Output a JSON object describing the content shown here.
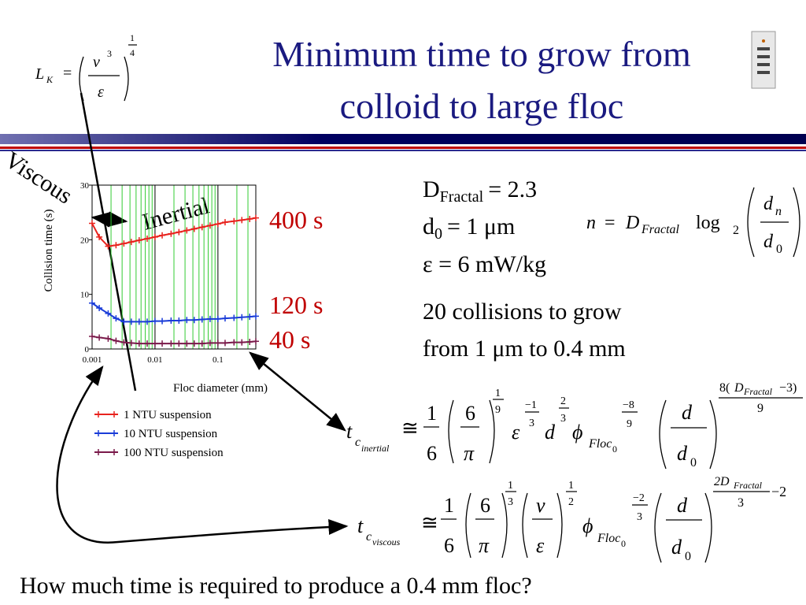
{
  "title": [
    "Minimum time to grow from",
    "colloid to large floc"
  ],
  "annotations": {
    "viscous": "Viscous",
    "inertial": "Inertial",
    "t400": "400 s",
    "t120": "120 s",
    "t40": "40 s"
  },
  "params": [
    [
      "D",
      "Fractal",
      "= 2.3"
    ],
    [
      "d",
      "0",
      "= 1 μm"
    ],
    [
      "ε = 6 mW/kg"
    ]
  ],
  "notes": [
    "20 collisions to grow",
    "from 1 μm to 0.4 mm"
  ],
  "question": "How much time is required to produce a 0.4 mm floc?",
  "equations": {
    "kolmogorov": [
      "L",
      "K",
      "=",
      "ν",
      "3",
      "ε",
      "1",
      "4"
    ],
    "n": [
      "n",
      "=",
      "D",
      "Fractal",
      "log",
      "2",
      "d",
      "n",
      "d",
      "0"
    ],
    "inertial": [
      "t",
      "c",
      "inertial",
      "≅",
      "1",
      "6",
      "6",
      "π",
      "1",
      "9",
      "ε",
      "−1",
      "3",
      "d",
      "2",
      "3",
      "ϕ",
      "Floc",
      "0",
      "−8",
      "9",
      "d",
      "d",
      "0",
      "8(",
      "D",
      "Fractal",
      "−3)",
      "9"
    ],
    "viscous": [
      "t",
      "c",
      "viscous",
      "≅",
      "1",
      "6",
      "6",
      "π",
      "1",
      "3",
      "ν",
      "ε",
      "1",
      "2",
      "ϕ",
      "Floc",
      "0",
      "−2",
      "3",
      "d",
      "d",
      "0",
      "2D",
      "Fractal",
      "3",
      "−2"
    ]
  },
  "chart_data": {
    "type": "line",
    "x_label": "Floc diameter (mm)",
    "y_label": "Collision time (s)",
    "xscale": "log",
    "xlim": [
      0.001,
      0.4
    ],
    "ylim": [
      0,
      30
    ],
    "xticks": [
      0.001,
      0.01,
      0.1
    ],
    "yticks": [
      0,
      10,
      20,
      30
    ],
    "x_minor_ticks": [
      0.002,
      0.003,
      0.004,
      0.005,
      0.006,
      0.007,
      0.008,
      0.009,
      0.02,
      0.03,
      0.04,
      0.05,
      0.06,
      0.07,
      0.08,
      0.09,
      0.2,
      0.3
    ],
    "grid": true,
    "x": [
      0.001,
      0.0013,
      0.0018,
      0.0024,
      0.0032,
      0.0042,
      0.0056,
      0.0075,
      0.01,
      0.013,
      0.018,
      0.024,
      0.032,
      0.042,
      0.056,
      0.075,
      0.1,
      0.13,
      0.18,
      0.24,
      0.32,
      0.4
    ],
    "series": [
      {
        "name": "1 NTU suspension",
        "color": "#e8231e",
        "values": [
          23,
          20.5,
          18.8,
          19,
          19.3,
          19.6,
          19.9,
          20.2,
          20.5,
          20.8,
          21.1,
          21.4,
          21.7,
          22,
          22.3,
          22.6,
          22.9,
          23.2,
          23.4,
          23.6,
          23.8,
          24
        ]
      },
      {
        "name": "10 NTU suspension",
        "color": "#1a3cd8",
        "values": [
          8.4,
          7.5,
          6.5,
          5.6,
          5.0,
          5.0,
          5.0,
          5.0,
          5.1,
          5.1,
          5.2,
          5.2,
          5.3,
          5.3,
          5.4,
          5.5,
          5.5,
          5.6,
          5.7,
          5.8,
          5.9,
          6.0
        ]
      },
      {
        "name": "100 NTU suspension",
        "color": "#7a1a4a",
        "values": [
          2.3,
          2.1,
          1.9,
          1.5,
          1.2,
          1.1,
          1.0,
          1.0,
          1.0,
          1.0,
          1.0,
          1.0,
          1.0,
          1.0,
          1.0,
          1.1,
          1.1,
          1.1,
          1.2,
          1.2,
          1.3,
          1.4
        ]
      }
    ]
  }
}
